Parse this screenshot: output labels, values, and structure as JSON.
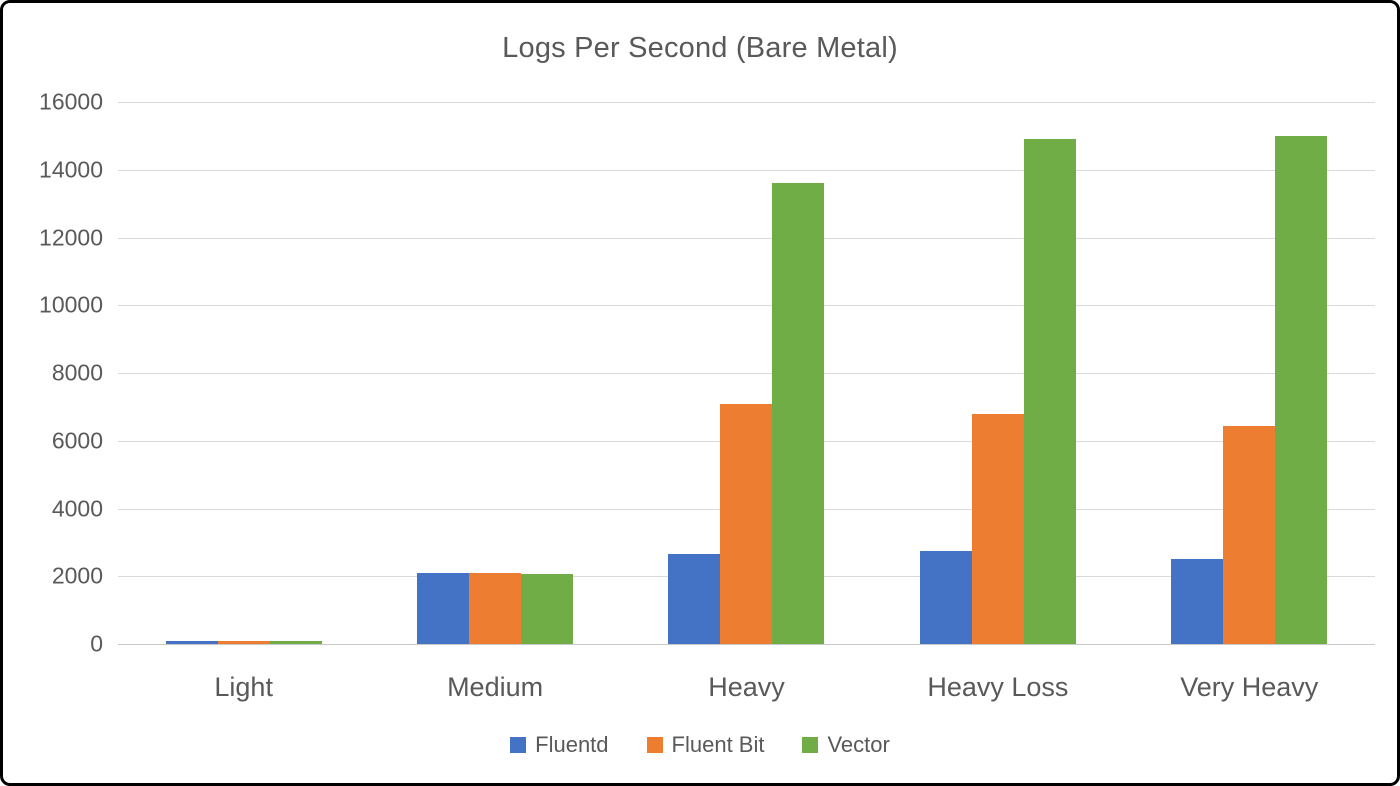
{
  "chart_data": {
    "type": "bar",
    "title": "Logs Per Second (Bare Metal)",
    "categories": [
      "Light",
      "Medium",
      "Heavy",
      "Heavy Loss",
      "Very Heavy"
    ],
    "series": [
      {
        "name": "Fluentd",
        "color": "#4472C4",
        "values": [
          100,
          2100,
          2650,
          2750,
          2500
        ]
      },
      {
        "name": "Fluent Bit",
        "color": "#ED7D31",
        "values": [
          100,
          2100,
          7100,
          6800,
          6450
        ]
      },
      {
        "name": "Vector",
        "color": "#70AD47",
        "values": [
          100,
          2070,
          13600,
          14900,
          15000
        ]
      }
    ],
    "xlabel": "",
    "ylabel": "",
    "ylim": [
      0,
      16000
    ],
    "yticks": [
      0,
      2000,
      4000,
      6000,
      8000,
      10000,
      12000,
      14000,
      16000
    ],
    "grid": true,
    "legend_position": "bottom"
  },
  "style": {
    "text_color": "#595959",
    "gridline_color": "#D9D9D9",
    "background": "#FFFFFF",
    "border_color": "#000000"
  }
}
